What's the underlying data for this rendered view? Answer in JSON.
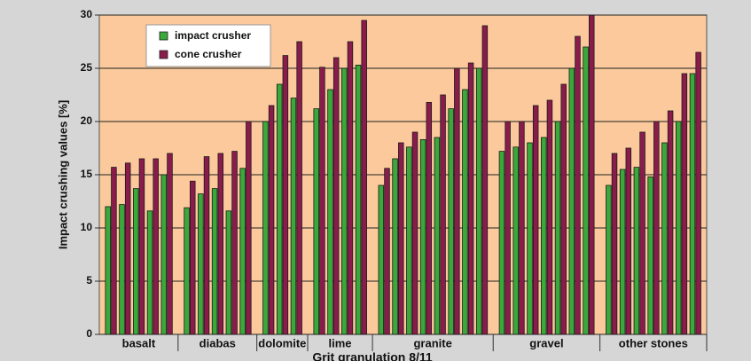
{
  "chart_data": {
    "type": "grouped-bar",
    "ylabel": "Impact crushing values [%]",
    "xlabel": "Grit granulation 8/11",
    "categories": [
      "basalt",
      "diabas",
      "dolomite",
      "lime",
      "granite",
      "gravel",
      "other stones"
    ],
    "series": [
      {
        "name": "impact crusher",
        "color": "#3aa83a",
        "values": [
          [
            12,
            12.2,
            13.7,
            11.6,
            15
          ],
          [
            11.9,
            13.2,
            13.7,
            11.6,
            15.6
          ],
          [
            20,
            23.5,
            22.2
          ],
          [
            21.2,
            23,
            25,
            25.3
          ],
          [
            14,
            16.5,
            17.6,
            18.3,
            18.5,
            21.2,
            23,
            25
          ],
          [
            17.2,
            17.6,
            18,
            18.5,
            20,
            25,
            27
          ],
          [
            14,
            15.5,
            15.7,
            14.8,
            18,
            20,
            24.5
          ]
        ]
      },
      {
        "name": "cone crusher",
        "color": "#8a1c4c",
        "values": [
          [
            15.7,
            16.1,
            16.5,
            16.5,
            17
          ],
          [
            14.4,
            16.7,
            17,
            17.2,
            20
          ],
          [
            21.5,
            26.2,
            27.5
          ],
          [
            25.1,
            26,
            27.5,
            29.5
          ],
          [
            15.6,
            18,
            19,
            21.8,
            22.5,
            25,
            25.5,
            29
          ],
          [
            20,
            20,
            21.5,
            22,
            23.5,
            28,
            30
          ],
          [
            17,
            17.5,
            19,
            20,
            21,
            24.5,
            26.5
          ]
        ]
      }
    ],
    "ylim": [
      0,
      30
    ],
    "yticks": [
      0,
      5,
      10,
      15,
      20,
      25,
      30
    ],
    "grid": true
  }
}
